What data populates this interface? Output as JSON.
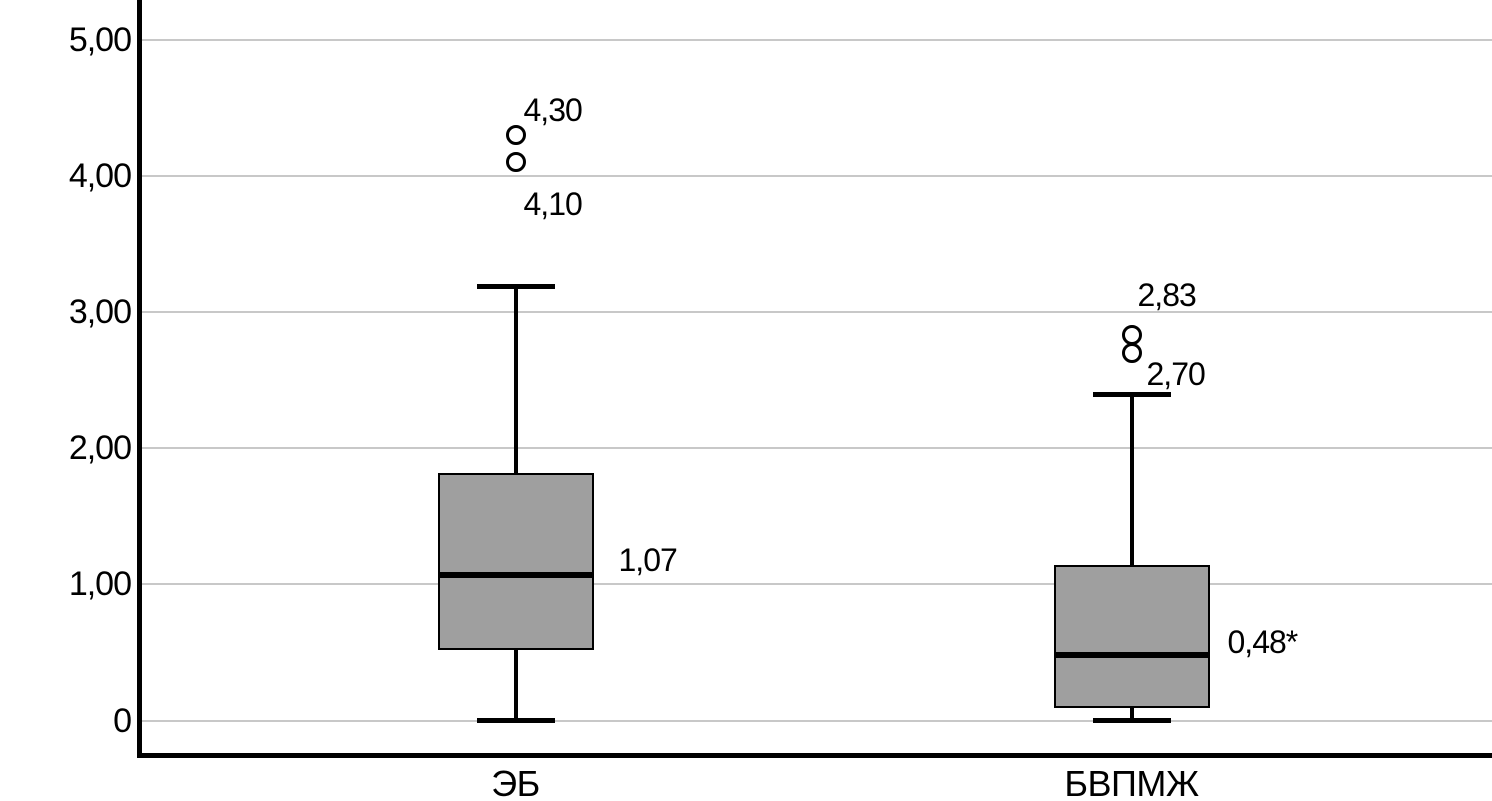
{
  "chart_data": {
    "type": "boxplot",
    "title": "",
    "xlabel": "",
    "ylabel": "",
    "categories": [
      "ЭБ",
      "БВПМЖ"
    ],
    "y_axis": {
      "min": 0,
      "max": 5,
      "tick_step": 1,
      "grid": true,
      "decimal_separator": "comma"
    },
    "y_ticks": [
      {
        "value": 5,
        "label": "5,00"
      },
      {
        "value": 4,
        "label": "4,00"
      },
      {
        "value": 3,
        "label": "3,00"
      },
      {
        "value": 2,
        "label": "2,00"
      },
      {
        "value": 1,
        "label": "1,00"
      },
      {
        "value": 0,
        "label": "0"
      }
    ],
    "series": [
      {
        "category": "ЭБ",
        "whisker_low": 0.0,
        "q1": 0.52,
        "median": 1.07,
        "q3": 1.82,
        "whisker_high": 3.19,
        "median_label": "1,07",
        "median_label_offset": [
          25,
          -32
        ],
        "outliers": [
          {
            "value": 4.3,
            "label": "4,30",
            "label_offset": [
              8,
              -42
            ]
          },
          {
            "value": 4.1,
            "label": "4,10",
            "label_offset": [
              8,
              25
            ]
          }
        ]
      },
      {
        "category": "БВПМЖ",
        "whisker_low": 0.0,
        "q1": 0.09,
        "median": 0.48,
        "q3": 1.14,
        "whisker_high": 2.39,
        "median_label": "0,48*",
        "median_label_offset": [
          18,
          -30
        ],
        "outliers": [
          {
            "value": 2.83,
            "label": "2,83",
            "label_offset": [
              6,
              -57
            ]
          },
          {
            "value": 2.7,
            "label": "2,70",
            "label_offset": [
              15,
              4
            ]
          }
        ]
      }
    ],
    "colors": {
      "box_fill": "#9f9f9f",
      "box_border": "#000000",
      "median": "#000000",
      "whisker": "#000000",
      "gridline": "#c8c8c8",
      "axis": "#000000",
      "background": "#ffffff",
      "text": "#000000"
    },
    "legend": {
      "visible": false
    }
  }
}
